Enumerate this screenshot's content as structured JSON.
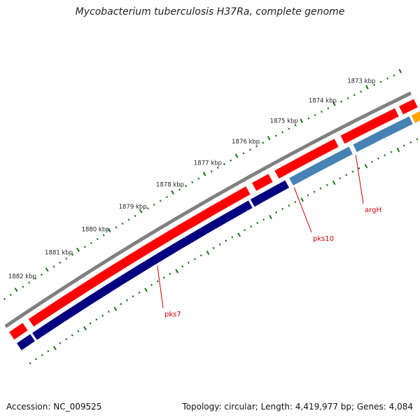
{
  "title": "Mycobacterium tuberculosis H37Ra, complete genome",
  "footer": {
    "accession": "Accession: NC_009525",
    "topology": "Topology: circular; Length: 4,419,977 bp; Genes: 4,084"
  },
  "tick_labels": [
    "1873 kbp",
    "1874 kbp",
    "1875 kbp",
    "1876 kbp",
    "1877 kbp",
    "1878 kbp",
    "1879 kbp",
    "1880 kbp",
    "1881 kbp",
    "1882 kbp"
  ],
  "gene_labels": [
    "argH",
    "pks10",
    "pks7"
  ],
  "colors": {
    "backbone": "#808080",
    "forward_gene": "#ff0000",
    "reverse_gene": "#000080",
    "reverse_gene_light": "#4682b4",
    "orange_gene": "#ffa500",
    "ticks": "#117711",
    "labels": "#cc0000"
  }
}
